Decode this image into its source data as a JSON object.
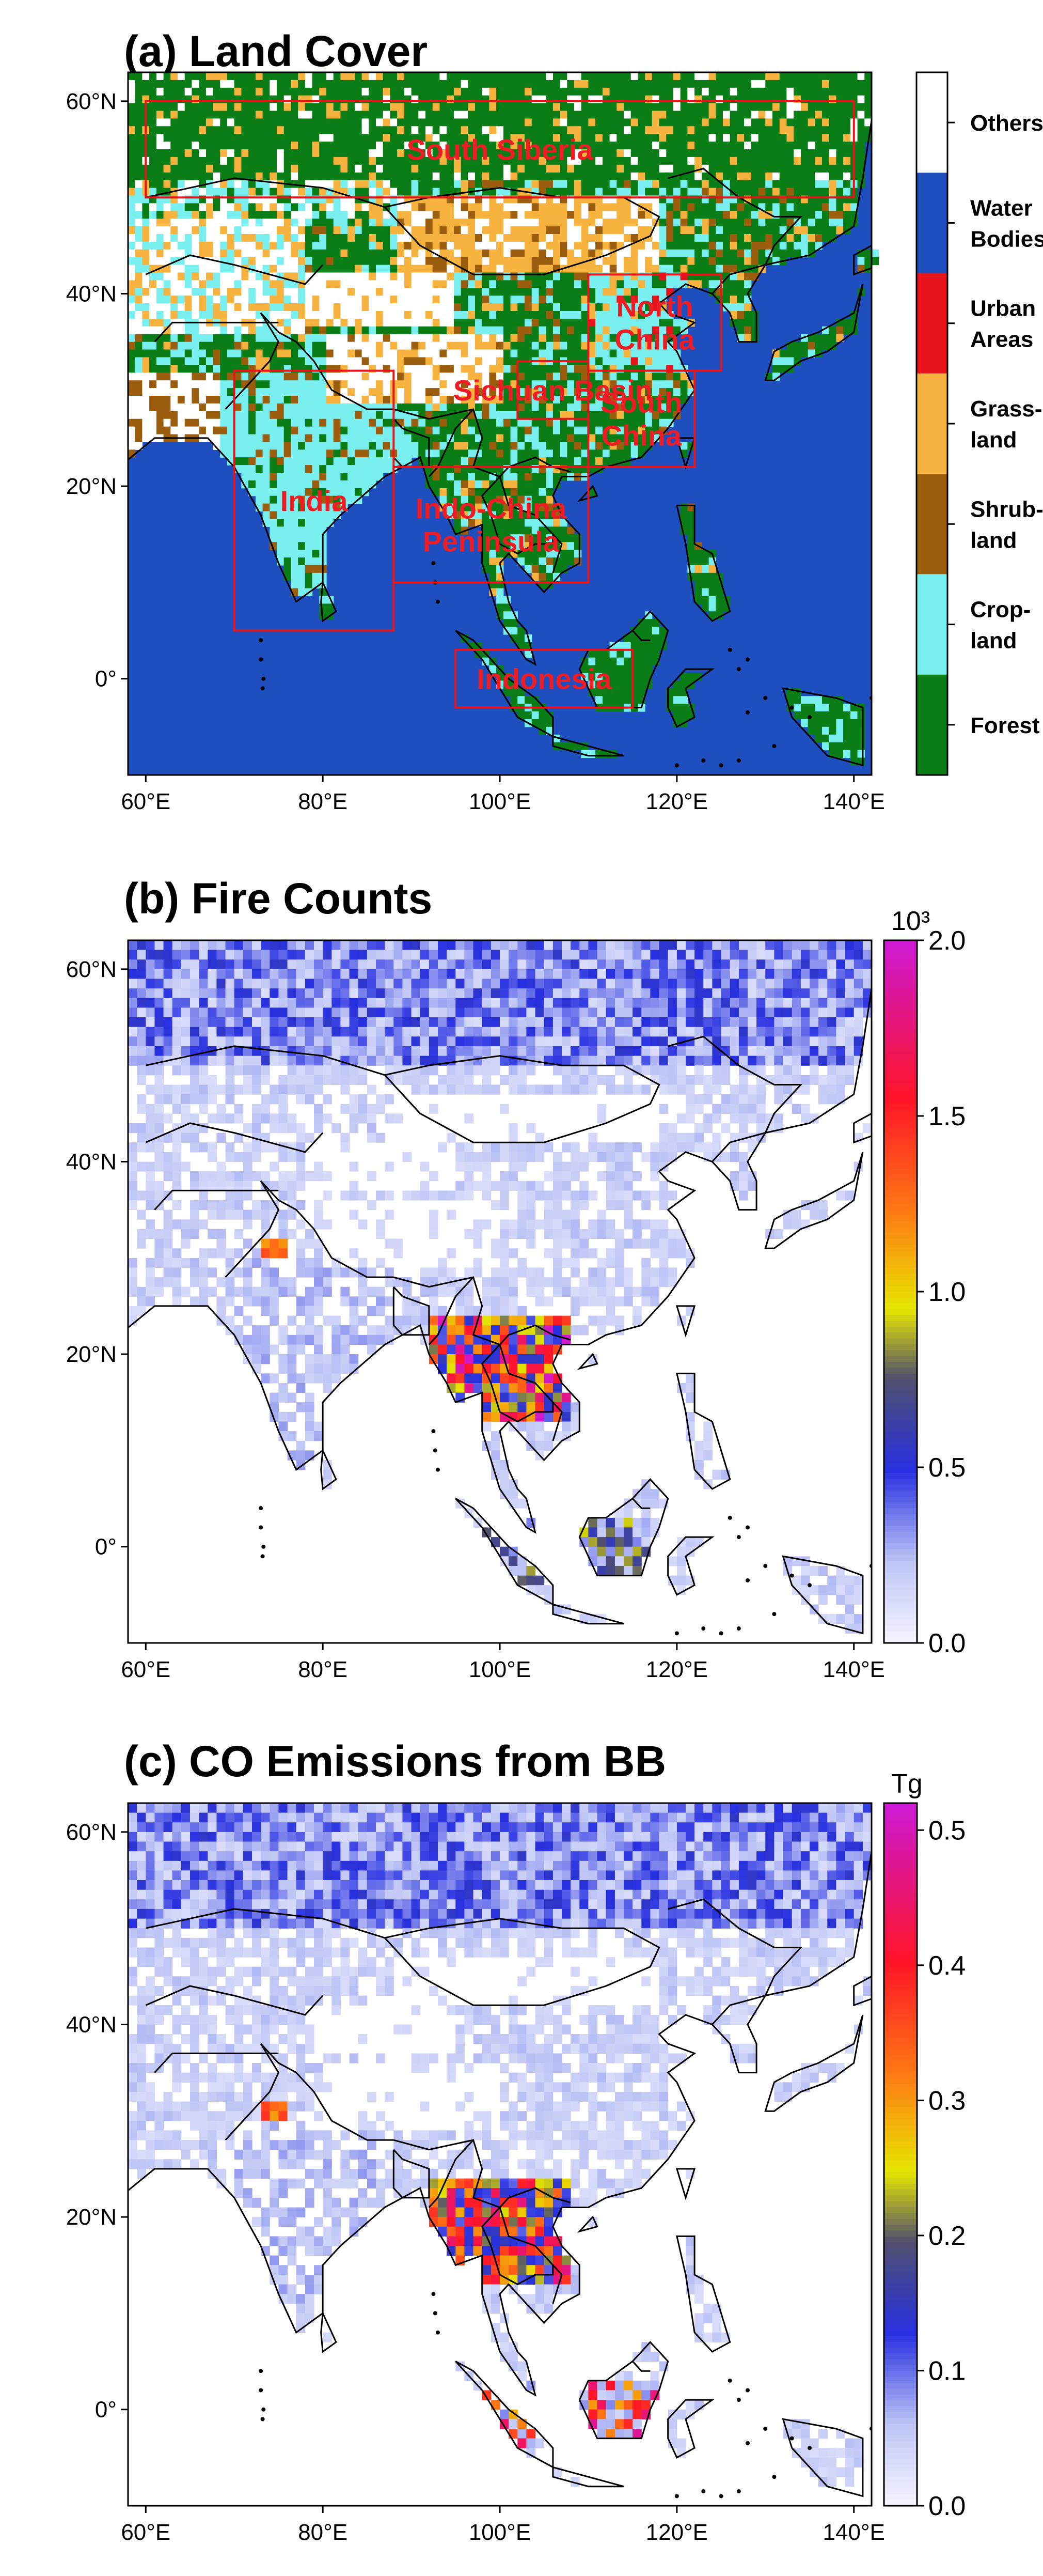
{
  "panels": [
    {
      "id": "a",
      "title": "(a) Land Cover",
      "x_ticks": [
        "60°E",
        "80°E",
        "100°E",
        "120°E",
        "140°E"
      ],
      "y_ticks": [
        "60°N",
        "40°N",
        "20°N",
        "0°"
      ],
      "legend": [
        {
          "label_lines": [
            "Others"
          ],
          "color": "#ffffff"
        },
        {
          "label_lines": [
            "Water",
            "Bodies"
          ],
          "color": "#1f4fbf"
        },
        {
          "label_lines": [
            "Urban",
            "Areas"
          ],
          "color": "#e8141b"
        },
        {
          "label_lines": [
            "Grass-",
            "land"
          ],
          "color": "#f7b33f"
        },
        {
          "label_lines": [
            "Shrub-",
            "land"
          ],
          "color": "#9b5d0e"
        },
        {
          "label_lines": [
            "Crop-",
            "land"
          ],
          "color": "#79f0ef"
        },
        {
          "label_lines": [
            "Forest"
          ],
          "color": "#0a7d16"
        }
      ],
      "regions": [
        {
          "name": "South Siberia",
          "lon": [
            60,
            140
          ],
          "lat": [
            50,
            60
          ],
          "label_lines": [
            "South Siberia"
          ]
        },
        {
          "name": "North China",
          "lon": [
            110,
            125
          ],
          "lat": [
            32,
            42
          ],
          "label_lines": [
            "North",
            "China"
          ]
        },
        {
          "name": "Sichuan Basin",
          "lon": [
            102,
            110
          ],
          "lat": [
            27,
            33
          ],
          "label_lines": [
            "Sichuan Basin"
          ]
        },
        {
          "name": "South China",
          "lon": [
            110,
            122
          ],
          "lat": [
            22,
            32
          ],
          "label_lines": [
            "South",
            "China"
          ]
        },
        {
          "name": "India",
          "lon": [
            70,
            88
          ],
          "lat": [
            5,
            32
          ],
          "label_lines": [
            "India"
          ]
        },
        {
          "name": "Indo-China Peninsula",
          "lon": [
            88,
            110
          ],
          "lat": [
            10,
            22
          ],
          "label_lines": [
            "Indo-China",
            "Peninsula"
          ]
        },
        {
          "name": "Indonesia",
          "lon": [
            95,
            115
          ],
          "lat": [
            -3,
            3
          ],
          "label_lines": [
            "Indonesia"
          ]
        }
      ]
    },
    {
      "id": "b",
      "title": "(b) Fire Counts",
      "x_ticks": [
        "60°E",
        "80°E",
        "100°E",
        "120°E",
        "140°E"
      ],
      "y_ticks": [
        "60°N",
        "40°N",
        "20°N",
        "0°"
      ],
      "colorbar": {
        "unit": "10³",
        "ticks": [
          "0.0",
          "0.5",
          "1.0",
          "1.5",
          "2.0"
        ],
        "tick_values": [
          0.0,
          0.5,
          1.0,
          1.5,
          2.0
        ],
        "range": [
          0.0,
          2.0
        ]
      }
    },
    {
      "id": "c",
      "title": "(c) CO Emissions from BB",
      "x_ticks": [
        "60°E",
        "80°E",
        "100°E",
        "120°E",
        "140°E"
      ],
      "y_ticks": [
        "60°N",
        "40°N",
        "20°N",
        "0°"
      ],
      "colorbar": {
        "unit": "Tg",
        "ticks": [
          "0.0",
          "0.1",
          "0.2",
          "0.3",
          "0.4",
          "0.5"
        ],
        "tick_values": [
          0.0,
          0.1,
          0.2,
          0.3,
          0.4,
          0.5
        ],
        "range": [
          0.0,
          0.52
        ]
      }
    }
  ],
  "map_extent": {
    "lon": [
      58,
      142
    ],
    "lat": [
      -10,
      63
    ]
  },
  "colors": {
    "ocean": "#1f4fbf",
    "region_box": "#e8141b",
    "coastline": "#000000",
    "fire_low": "#eef0ff",
    "fire_mid": "#1c2bd9",
    "fire_high": "#ff1a1a",
    "fire_top": "#c81cd0"
  }
}
